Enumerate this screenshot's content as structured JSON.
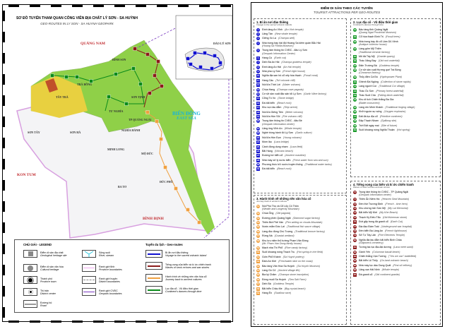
{
  "map": {
    "title": "SƠ ĐỒ TUYẾN THAM QUAN CÔNG VIÊN ĐỊA CHẤT LÝ SƠN - SA HUỲNH",
    "subtitle": "GEO-ROUTES IN LY SON - SA HUYNH GEOPARK",
    "provinces": [
      "QUẢNG NAM",
      "KON TUM",
      "BÌNH ĐỊNH"
    ],
    "sea": {
      "vi": "BIỂN ĐÔNG",
      "en": "EAST SEA"
    },
    "island": "ĐẢO LÝ SƠN",
    "districts": [
      "BÌNH SƠN",
      "TRÀ BỒNG",
      "TÂY TRÀ",
      "SƠN TỊNH",
      "TƯ NGHĨA",
      "TP QUẢNG NGÃI",
      "NGHĨA HÀNH",
      "SƠN TÂY",
      "SƠN HÀ",
      "MINH LONG",
      "MỘ ĐỨC",
      "ĐỨC PHỔ",
      "BA TƠ"
    ],
    "route_colors": {
      "route1": "#1010d0",
      "route2": "#0a8a1a",
      "route3": "#f0a040",
      "route4": "#8b1a1a"
    }
  },
  "legend": {
    "title": "CHÚ GIẢI - LEGEND",
    "routes_title": "Tuyến du lịch - Geo-routes",
    "items": [
      {
        "vi": "Điểm di sản địa chất",
        "en": "Geological heritage site",
        "icon": "gray-square"
      },
      {
        "vi": "Điểm di sản văn hóa",
        "en": "Cultural heritage",
        "icon": "gray-circle"
      },
      {
        "vi": "Thành phố",
        "en": "Province town",
        "icon": "city-dot"
      },
      {
        "vi": "Thị trấn",
        "en": "District center",
        "icon": "town-dot"
      },
      {
        "vi": "Đường bộ",
        "en": "Road",
        "icon": "road-line"
      },
      {
        "vi": "Sông suối",
        "en": "River, stream",
        "icon": "river"
      },
      {
        "vi": "Ranh giới tỉnh",
        "en": "Province boundaries",
        "icon": "province-line"
      },
      {
        "vi": "Ranh giới huyện",
        "en": "District boundaries",
        "icon": "district-line"
      },
      {
        "vi": "Ranh giới CVĐC",
        "en": "Geopark boundaries",
        "icon": "geopark-line"
      }
    ],
    "routes": [
      {
        "vi": "Bí ẩn nơi đảo thiêng",
        "en": "Voyage to the sacred volcanic island",
        "color": "#1010d0"
      },
      {
        "vi": "Tiếng vọng của biển và kí ức chiến tranh",
        "en": "Waves of sea's echoes and war stories",
        "color": "#8b1a1a"
      },
      {
        "vi": "Hành trình về những nền văn hóa cổ",
        "en": "Journey back to ancient cultures",
        "color": "#f0a040"
      },
      {
        "vi": "Lục địa cổ - Vũ điệu thời gian",
        "en": "Continent's dances through time",
        "color": "#0a8a1a"
      }
    ]
  },
  "panel": {
    "title": "ĐIỂM DI SẢN THEO CÁC TUYẾN",
    "subtitle": "TOURIST ATTRACTIONS PER GEO-ROUTES",
    "sections": [
      {
        "title": "1. Bí ẩn nơi đảo thiêng",
        "en": "Voyage to the sacred volcanic islands",
        "color": "#1a1ad0",
        "items": [
          {
            "n": "1",
            "vi": "Đình làng An Vĩnh",
            "en": "(An Vinh temple)",
            "shape": "circle"
          },
          {
            "n": "2",
            "vi": "Lăng Tân",
            "en": "(New whale temple)",
            "shape": "circle"
          },
          {
            "n": "3",
            "vi": "Giếng Xó La",
            "en": "(Champa well)",
            "shape": "circle"
          },
          {
            "n": "4",
            "vi": "Nhà trưng bày hải đội Hoàng Sa kiêm quản Bắc Hải",
            "en": "(Hoang Sa Flotilla Museum)",
            "shape": "circle",
            "two": true
          },
          {
            "n": "5",
            "vi": "Trung tâm thông tin CVĐC - đảo Lý Sơn",
            "en": "(Geopark Information Center)",
            "shape": "circle",
            "two": true
          },
          {
            "n": "6",
            "vi": "Hang Cò",
            "en": "(Earth cut)",
            "shape": "square"
          },
          {
            "n": "7",
            "vi": "Dinh Bà An Hải",
            "en": "(Champa goddess temple)",
            "shape": "circle"
          },
          {
            "n": "8",
            "vi": "Đình làng An Hải",
            "en": "(An Hai temple)",
            "shape": "circle"
          },
          {
            "n": "9",
            "vi": "Nhà pha Lý Sơn",
            "en": "(French light house)",
            "shape": "circle"
          },
          {
            "n": "10",
            "vi": "Nghĩa địa san hô cổ xếp hóa thạch",
            "en": "(Fossil coral)",
            "shape": "square"
          },
          {
            "n": "11",
            "vi": "Hang Câu",
            "en": "(Tuf volcanic cliff)",
            "shape": "square"
          },
          {
            "n": "12",
            "vi": "Núi lửa Thới Lới",
            "en": "(Water volcano)",
            "shape": "square"
          },
          {
            "n": "13",
            "vi": "Chùa Hang",
            "en": "(Champa cave pagoda)",
            "shape": "circle"
          },
          {
            "n": "14",
            "vi": "Cơ sở sản xuất đặc sản tỏi Lý Sơn",
            "en": "(Garlic Wine factory)",
            "shape": "circle"
          },
          {
            "n": "15",
            "vi": "Cổng Tò Vò",
            "en": "(Stone bridge)",
            "shape": "square"
          },
          {
            "n": "16",
            "vi": "Đá bãi biển",
            "en": "(Beach rock)",
            "shape": "square"
          },
          {
            "n": "17",
            "vi": "Khu vực tàu đắm",
            "en": "(Ship wreck)",
            "shape": "square"
          },
          {
            "n": "18",
            "vi": "Núi lửa Giếng Tiền",
            "en": "(Meter volcano)",
            "shape": "square"
          },
          {
            "n": "19",
            "vi": "Núi lửa Hòn Sỏi",
            "en": "(Fire volcano cliff)",
            "shape": "square"
          },
          {
            "n": "20",
            "vi": "Trung tâm thông tin CVĐC - đảo Bé",
            "en": "(Geopark information center)",
            "shape": "circle",
            "two": true
          },
          {
            "n": "21",
            "vi": "Lăng ông Vĩnh An",
            "en": "(Whale temple)",
            "shape": "circle"
          },
          {
            "n": "22",
            "vi": "Nghề trồng hành tỏi Lý Sơn",
            "en": "(Garlic culture)",
            "shape": "circle"
          },
          {
            "n": "23",
            "vi": "Núi lửa Hòn Đụn",
            "en": "(Young volcano)",
            "shape": "square"
          },
          {
            "n": "24",
            "vi": "Mom lâu",
            "en": "(Lava bridge)",
            "shape": "square"
          },
          {
            "n": "25",
            "vi": "Cánh đồng dung nham",
            "en": "(Lava field)",
            "shape": "square"
          },
          {
            "n": "26",
            "vi": "Bãi Hang",
            "en": "(Volcano beach)",
            "shape": "square"
          },
          {
            "n": "27",
            "vi": "Đường bờ biển cổ",
            "en": "(Ancient coastline)",
            "shape": "square"
          },
          {
            "n": "28",
            "vi": "Nhà máy xử lý nước biển",
            "en": "(Fresh water from sea and sun)",
            "shape": "square"
          },
          {
            "n": "29",
            "vi": "Phương thức trữ nước truyền thống",
            "en": "(Traditional water tanks)",
            "shape": "circle"
          },
          {
            "n": "30",
            "vi": "Đá bãi biển",
            "en": "(Beach rock)",
            "shape": "square"
          }
        ]
      },
      {
        "title": "2. Lục địa cổ - Vũ điệu thời gian",
        "en": "Continent's dances through time",
        "color": "#1a9a2a",
        "items": [
          {
            "n": "31",
            "vi": "Bảo tàng tỉnh Quảng Ngãi",
            "en": "(Quang Ngai Provincial Museum)",
            "shape": "circle",
            "two": true
          },
          {
            "n": "32",
            "vi": "Cổ hóa thạch Bình Trị",
            "en": "(Fossil trees)",
            "shape": "square"
          },
          {
            "n": "33",
            "vi": "Nhà trưng bày đồ cổ Lâm Dũ Xênh",
            "en": "(Antique collector house)",
            "shape": "circle",
            "two": true
          },
          {
            "n": "34",
            "vi": "Làng gốm Mỹ Thiện",
            "en": "(Traditional ceramic factory)",
            "shape": "circle",
            "two": true
          },
          {
            "n": "35",
            "vi": "Mỏ đá Tây Mỹ",
            "en": "(Granite quarry)",
            "shape": "square"
          },
          {
            "n": "36",
            "vi": "Thác Xăng Bay",
            "en": "(Old rock waterfall)",
            "shape": "square"
          },
          {
            "n": "37",
            "vi": "Điện Trường Bà",
            "en": "(Goddess temple)",
            "shape": "circle"
          },
          {
            "n": "38",
            "vi": "Cơ sở sản xuất Hương quế Trà Bồng",
            "en": "(Cinnamon factory)",
            "shape": "circle",
            "two": true
          },
          {
            "n": "39",
            "vi": "Thủy điện Cà Đú",
            "en": "(Hydropower Plant)",
            "shape": "circle"
          },
          {
            "n": "40",
            "vi": "Ghềnh Đá Ngông",
            "en": "(Collection of stone rapids)",
            "shape": "square"
          },
          {
            "n": "41",
            "vi": "Làng người Cor",
            "en": "(Traditional Cor village)",
            "shape": "circle"
          },
          {
            "n": "42",
            "vi": "Thác Ốc Sơn",
            "en": "(Primary forest waterfall)",
            "shape": "square"
          },
          {
            "n": "43",
            "vi": "Thác Suối Chà",
            "en": "(Falling block waterfall)",
            "shape": "square"
          },
          {
            "n": "44",
            "vi": "Khu di tích Chiến thắng Ba Gia",
            "en": "(Battle monument)",
            "shape": "circle",
            "two": true
          },
          {
            "n": "45",
            "vi": "Làng rèn Minh Khánh",
            "en": "(Traditional forging village)",
            "shape": "circle"
          },
          {
            "n": "46",
            "vi": "Khởi nguồn sự sống",
            "en": "(Oxygen explosion)",
            "shape": "circle"
          },
          {
            "n": "47",
            "vi": "Đất đá lục địa cổ",
            "en": "(Primitive continent)",
            "shape": "square"
          },
          {
            "n": "48",
            "vi": "Đập Thạch Nham",
            "en": "(Spillway site)",
            "shape": "circle"
          },
          {
            "n": "49",
            "vi": "Trời Đất ngày mai",
            "en": "(Site of future)",
            "shape": "circle"
          },
          {
            "n": "50",
            "vi": "Suối khoáng nóng Nghĩa Thuận",
            "en": "(Hot spring)",
            "shape": "square"
          }
        ]
      },
      {
        "title": "3. Hành trình về những nền văn hóa cổ",
        "en": "Journey back to ancient cultures",
        "color": "#f0a040",
        "items": [
          {
            "n": "51",
            "vi": "Núi Phú Thọ và Cổ Lũy Cô Thôn",
            "en": "(Wealth and Longevity Mountain)",
            "shape": "circle",
            "two": true
          },
          {
            "n": "52",
            "vi": "Chùa Ông",
            "en": "(Old pagoda)",
            "shape": "circle"
          },
          {
            "n": "53",
            "vi": "Đường phèn Quảng Ngãi",
            "en": "(Diamond sugar factory)",
            "shape": "circle"
          },
          {
            "n": "54",
            "vi": "Thiên Bút Phê Vân",
            "en": "(Pen writing on clouds Mountain)",
            "shape": "circle"
          },
          {
            "n": "55",
            "vi": "Nước mắm Đức Lợi",
            "en": "(Traditional fish sauce village)",
            "shape": "circle"
          },
          {
            "n": "56",
            "vi": "Làng đúc đồng Chú Tượng",
            "en": "(Traditional bronze factory)",
            "shape": "circle"
          },
          {
            "n": "57",
            "vi": "Rừng Nà",
            "en": "(Coastal wetland)",
            "shape": "circle"
          },
          {
            "n": "58",
            "vi": "Khu lưu niệm thủ tướng Phạm Văn Đồng",
            "en": "(Mr. Pham Van Dong family house)",
            "shape": "circle",
            "two": true
          },
          {
            "n": "59",
            "vi": "Mạch nha Thi Phổ",
            "en": "(Rice candy factory)",
            "shape": "circle"
          },
          {
            "n": "60",
            "vi": "Suối khoáng nóng Thạch Trụ",
            "en": "(Hot spring in rice field)",
            "shape": "square"
          },
          {
            "n": "61",
            "vi": "Gốm Phổ Khánh",
            "en": "(Sa Huynh pottery)",
            "shape": "circle"
          },
          {
            "n": "62",
            "vi": "Đầm An Khê",
            "en": "(Freshwater lake on the coast)",
            "shape": "square"
          },
          {
            "n": "63",
            "vi": "Bảo tàng Văn Hóa Sa Huỳnh",
            "en": "(Sa Huynh Museum)",
            "shape": "circle"
          },
          {
            "n": "64",
            "vi": "Làng Gò Cỏ",
            "en": "(Ancient village life)",
            "shape": "circle"
          },
          {
            "n": "65",
            "vi": "Bia ký Chăm",
            "en": "(Champa stone inscription)",
            "shape": "circle"
          },
          {
            "n": "66",
            "vi": "Đồng muối Sa Huỳnh",
            "en": "(Sea Salt Farm)",
            "shape": "circle"
          },
          {
            "n": "67",
            "vi": "Dinh Bà",
            "en": "(Goddess Temple)",
            "shape": "circle"
          },
          {
            "n": "68",
            "vi": "Bãi biển Châu Me",
            "en": "(Big-crystal beach)",
            "shape": "square"
          },
          {
            "n": "69",
            "vi": "Hang Én",
            "en": "(Swallow cave)",
            "shape": "square"
          }
        ]
      },
      {
        "title": "4. Tiếng vọng của biển và kí ức chiến tranh",
        "en": "Waves of sea's echoes and war stories",
        "color": "#8b1a1a",
        "items": [
          {
            "n": "70",
            "vi": "Trung tâm thông tin CVĐC - TP Quảng Ngãi",
            "en": "(Geopark information center)",
            "shape": "circle",
            "two": true
          },
          {
            "n": "71",
            "vi": "Thiên Ấn Niêm Hà",
            "en": "(Heaven Seal Mountain)",
            "shape": "circle"
          },
          {
            "n": "72",
            "vi": "Đền thờ Trương Định",
            "en": "(French - time hero)",
            "shape": "circle"
          },
          {
            "n": "73",
            "vi": "Khu chứng tích Sơn Mỹ",
            "en": "(My Lai Memorial)",
            "shape": "circle"
          },
          {
            "n": "74",
            "vi": "Bãi biển Mỹ Khê",
            "en": "(My Khe Beach)",
            "shape": "circle"
          },
          {
            "n": "75",
            "vi": "Thạch Kỳ Điếu Tẩu",
            "en": "(Old fisherman stone)",
            "shape": "circle"
          },
          {
            "n": "76",
            "vi": "Đứt gãy trong đá granit cổ",
            "en": "(Earth Cut)",
            "shape": "square"
          },
          {
            "n": "77",
            "vi": "Địa đạo Đám Toái",
            "en": "(Underground war hospital)",
            "shape": "circle"
          },
          {
            "n": "78",
            "vi": "Đèn biển Ba Làng An",
            "en": "(French lighthouse)",
            "shape": "circle"
          },
          {
            "n": "79",
            "vi": "Sở Tự Tây Lăn",
            "en": "(Five Elements Temple)",
            "shape": "circle"
          },
          {
            "n": "80",
            "vi": "Nghĩa địa tàu đắm bãi biển Bình Châu",
            "en": "(Shipwreck cemetery)",
            "shape": "circle",
            "two": true
          },
          {
            "n": "81",
            "vi": "Tương tác lục địa-đại dương",
            "en": "(Lava meet sand)",
            "shape": "square"
          },
          {
            "n": "82",
            "vi": "Gành Yến",
            "en": "(Columnar basalt beach)",
            "shape": "circle"
          },
          {
            "n": "83",
            "vi": "Chiến thắng Vạn Tường",
            "en": "(\"Yes we can\" battlefield)",
            "shape": "square"
          },
          {
            "n": "84",
            "vi": "Bãi biển Lệ Thủy",
            "en": "(On-land volcanic beach)",
            "shape": "circle"
          },
          {
            "n": "85",
            "vi": "Nhà máy lọc dầu Dung Quất",
            "en": "(First oil refinery)",
            "shape": "circle"
          },
          {
            "n": "86",
            "vi": "Lăng vạn Hải Ninh",
            "en": "(Whale temple)",
            "shape": "circle"
          },
          {
            "n": "87",
            "vi": "Đá granit cổ",
            "en": "(Old continent granite)",
            "shape": "square"
          }
        ]
      }
    ]
  }
}
